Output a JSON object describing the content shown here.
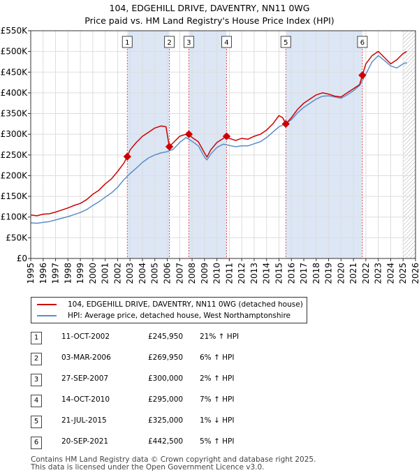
{
  "title_line1": "104, EDGEHILL DRIVE, DAVENTRY, NN11 0WG",
  "title_line2": "Price paid vs. HM Land Registry's House Price Index (HPI)",
  "legend": {
    "property": "104, EDGEHILL DRIVE, DAVENTRY, NN11 0WG (detached house)",
    "hpi": "HPI: Average price, detached house, West Northamptonshire"
  },
  "colors": {
    "property": "#cc0000",
    "hpi": "#5b8ec6",
    "band": "#dce6f5",
    "vline": "#e05050"
  },
  "sales": [
    {
      "num": "1",
      "date": "11-OCT-2002",
      "price": "£245,950",
      "diff": "21% ↑ HPI"
    },
    {
      "num": "2",
      "date": "03-MAR-2006",
      "price": "£269,950",
      "diff": "6% ↑ HPI"
    },
    {
      "num": "3",
      "date": "27-SEP-2007",
      "price": "£300,000",
      "diff": "2% ↑ HPI"
    },
    {
      "num": "4",
      "date": "14-OCT-2010",
      "price": "£295,000",
      "diff": "7% ↑ HPI"
    },
    {
      "num": "5",
      "date": "21-JUL-2015",
      "price": "£325,000",
      "diff": "1% ↓ HPI"
    },
    {
      "num": "6",
      "date": "20-SEP-2021",
      "price": "£442,500",
      "diff": "5% ↑ HPI"
    }
  ],
  "footer_line1": "Contains HM Land Registry data © Crown copyright and database right 2025.",
  "footer_line2": "This data is licensed under the Open Government Licence v3.0.",
  "chart_data": {
    "type": "line",
    "title": "104, EDGEHILL DRIVE, DAVENTRY, NN11 0WG",
    "subtitle": "Price paid vs. HM Land Registry's House Price Index (HPI)",
    "xlim": [
      1995,
      2026
    ],
    "ylim": [
      0,
      550000
    ],
    "x_ticks": [
      "1995",
      "1996",
      "1997",
      "1998",
      "1999",
      "2000",
      "2001",
      "2002",
      "2003",
      "2004",
      "2005",
      "2006",
      "2007",
      "2008",
      "2009",
      "2010",
      "2011",
      "2012",
      "2013",
      "2014",
      "2015",
      "2016",
      "2017",
      "2018",
      "2019",
      "2020",
      "2021",
      "2022",
      "2023",
      "2024",
      "2025",
      "2026"
    ],
    "y_ticks": [
      {
        "value": 0,
        "label": "£0"
      },
      {
        "value": 50000,
        "label": "£50K"
      },
      {
        "value": 100000,
        "label": "£100K"
      },
      {
        "value": 150000,
        "label": "£150K"
      },
      {
        "value": 200000,
        "label": "£200K"
      },
      {
        "value": 250000,
        "label": "£250K"
      },
      {
        "value": 300000,
        "label": "£300K"
      },
      {
        "value": 350000,
        "label": "£350K"
      },
      {
        "value": 400000,
        "label": "£400K"
      },
      {
        "value": 450000,
        "label": "£450K"
      },
      {
        "value": 500000,
        "label": "£500K"
      },
      {
        "value": 550000,
        "label": "£550K"
      }
    ],
    "shaded_ranges": [
      [
        2002.78,
        2006.17
      ],
      [
        2007.74,
        2010.78
      ],
      [
        2015.55,
        2021.72
      ]
    ],
    "hatched_from": 2025.0,
    "series": [
      {
        "name": "104, EDGEHILL DRIVE, DAVENTRY, NN11 0WG (detached house)",
        "x": [
          1995.0,
          1995.5,
          1996.0,
          1996.5,
          1997.0,
          1997.5,
          1998.0,
          1998.5,
          1999.0,
          1999.5,
          2000.0,
          2000.5,
          2001.0,
          2001.5,
          2002.0,
          2002.5,
          2002.78,
          2003.0,
          2003.5,
          2004.0,
          2004.5,
          2005.0,
          2005.5,
          2005.9,
          2006.17,
          2006.5,
          2007.0,
          2007.5,
          2007.74,
          2008.0,
          2008.5,
          2009.0,
          2009.2,
          2009.5,
          2010.0,
          2010.78,
          2011.0,
          2011.5,
          2012.0,
          2012.5,
          2013.0,
          2013.5,
          2014.0,
          2014.5,
          2015.0,
          2015.3,
          2015.55,
          2016.0,
          2016.5,
          2017.0,
          2017.5,
          2018.0,
          2018.5,
          2019.0,
          2019.5,
          2020.0,
          2020.5,
          2021.0,
          2021.5,
          2021.72,
          2022.0,
          2022.5,
          2023.0,
          2023.5,
          2024.0,
          2024.5,
          2025.0,
          2025.3
        ],
        "values": [
          105000,
          103000,
          107000,
          108000,
          112000,
          117000,
          122000,
          128000,
          133000,
          142000,
          155000,
          165000,
          180000,
          192000,
          210000,
          230000,
          245950,
          262000,
          280000,
          295000,
          305000,
          315000,
          320000,
          318000,
          269950,
          280000,
          295000,
          300000,
          300000,
          292000,
          282000,
          255000,
          245000,
          262000,
          280000,
          295000,
          290000,
          285000,
          290000,
          288000,
          295000,
          300000,
          310000,
          325000,
          345000,
          340000,
          325000,
          340000,
          360000,
          375000,
          385000,
          395000,
          400000,
          397000,
          392000,
          390000,
          400000,
          410000,
          420000,
          442500,
          470000,
          490000,
          500000,
          485000,
          470000,
          480000,
          495000,
          500000
        ]
      },
      {
        "name": "HPI: Average price, detached house, West Northamptonshire",
        "x": [
          1995.0,
          1995.5,
          1996.0,
          1996.5,
          1997.0,
          1997.5,
          1998.0,
          1998.5,
          1999.0,
          1999.5,
          2000.0,
          2000.5,
          2001.0,
          2001.5,
          2002.0,
          2002.5,
          2003.0,
          2003.5,
          2004.0,
          2004.5,
          2005.0,
          2005.5,
          2006.0,
          2006.5,
          2007.0,
          2007.5,
          2008.0,
          2008.5,
          2009.0,
          2009.2,
          2009.5,
          2010.0,
          2010.5,
          2011.0,
          2011.5,
          2012.0,
          2012.5,
          2013.0,
          2013.5,
          2014.0,
          2014.5,
          2015.0,
          2015.5,
          2016.0,
          2016.5,
          2017.0,
          2017.5,
          2018.0,
          2018.5,
          2019.0,
          2019.5,
          2020.0,
          2020.5,
          2021.0,
          2021.5,
          2022.0,
          2022.5,
          2023.0,
          2023.5,
          2024.0,
          2024.5,
          2025.0,
          2025.3
        ],
        "values": [
          86000,
          85000,
          87000,
          89000,
          93000,
          97000,
          101000,
          106000,
          111000,
          118000,
          128000,
          137000,
          148000,
          158000,
          172000,
          190000,
          205000,
          218000,
          232000,
          243000,
          250000,
          255000,
          258000,
          264000,
          280000,
          292000,
          283000,
          272000,
          245000,
          238000,
          252000,
          268000,
          276000,
          273000,
          270000,
          272000,
          272000,
          277000,
          282000,
          292000,
          305000,
          318000,
          325000,
          335000,
          352000,
          365000,
          375000,
          385000,
          392000,
          393000,
          390000,
          387000,
          395000,
          405000,
          418000,
          445000,
          475000,
          490000,
          478000,
          465000,
          460000,
          470000,
          473000
        ]
      }
    ],
    "sale_points": [
      {
        "label": "1",
        "x": 2002.78,
        "y": 245950
      },
      {
        "label": "2",
        "x": 2006.17,
        "y": 269950
      },
      {
        "label": "3",
        "x": 2007.74,
        "y": 300000
      },
      {
        "label": "4",
        "x": 2010.78,
        "y": 295000
      },
      {
        "label": "5",
        "x": 2015.55,
        "y": 325000
      },
      {
        "label": "6",
        "x": 2021.72,
        "y": 442500
      }
    ]
  }
}
